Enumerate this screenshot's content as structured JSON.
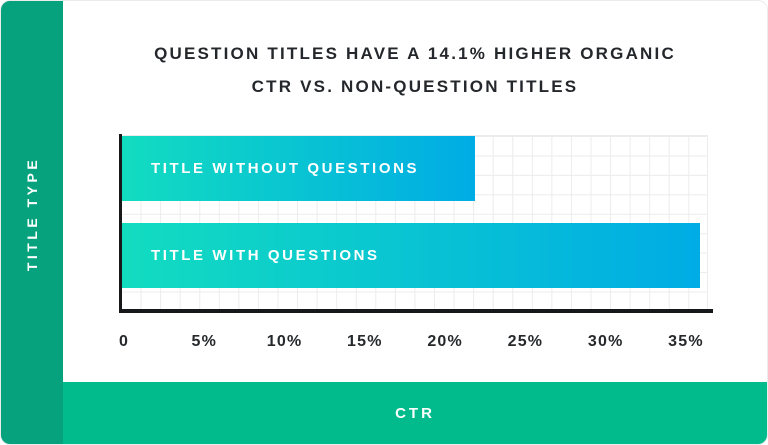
{
  "sidebar": {
    "label": "TITLE TYPE"
  },
  "bottom_bar": {
    "label": "CTR"
  },
  "title": {
    "line1": "QUESTION TITLES HAVE A 14.1% HIGHER ORGANIC",
    "line2": "CTR VS. NON-QUESTION TITLES"
  },
  "chart_data": {
    "type": "bar",
    "orientation": "horizontal",
    "title": "QUESTION TITLES HAVE A 14.1% HIGHER ORGANIC CTR VS. NON-QUESTION TITLES",
    "xlabel": "CTR",
    "ylabel": "TITLE TYPE",
    "categories": [
      "TITLE WITHOUT QUESTIONS",
      "TITLE WITH QUESTIONS"
    ],
    "values": [
      22,
      36
    ],
    "unit": "percent",
    "xlim": [
      0,
      36
    ],
    "x_tick_values": [
      0,
      5,
      10,
      15,
      20,
      25,
      30,
      35
    ],
    "x_tick_labels": [
      "0",
      "5%",
      "10%",
      "15%",
      "20%",
      "25%",
      "30%",
      "35%"
    ],
    "grid": true,
    "legend": false,
    "colors": {
      "bar_gradient_start": "#12dcc0",
      "bar_gradient_end": "#00ace5",
      "sidebar_green": "#05a27d",
      "bottom_bar_green": "#02bb8c",
      "axis_black": "#17181a",
      "text_dark": "#24272b",
      "grid_gray": "#ececec"
    }
  }
}
